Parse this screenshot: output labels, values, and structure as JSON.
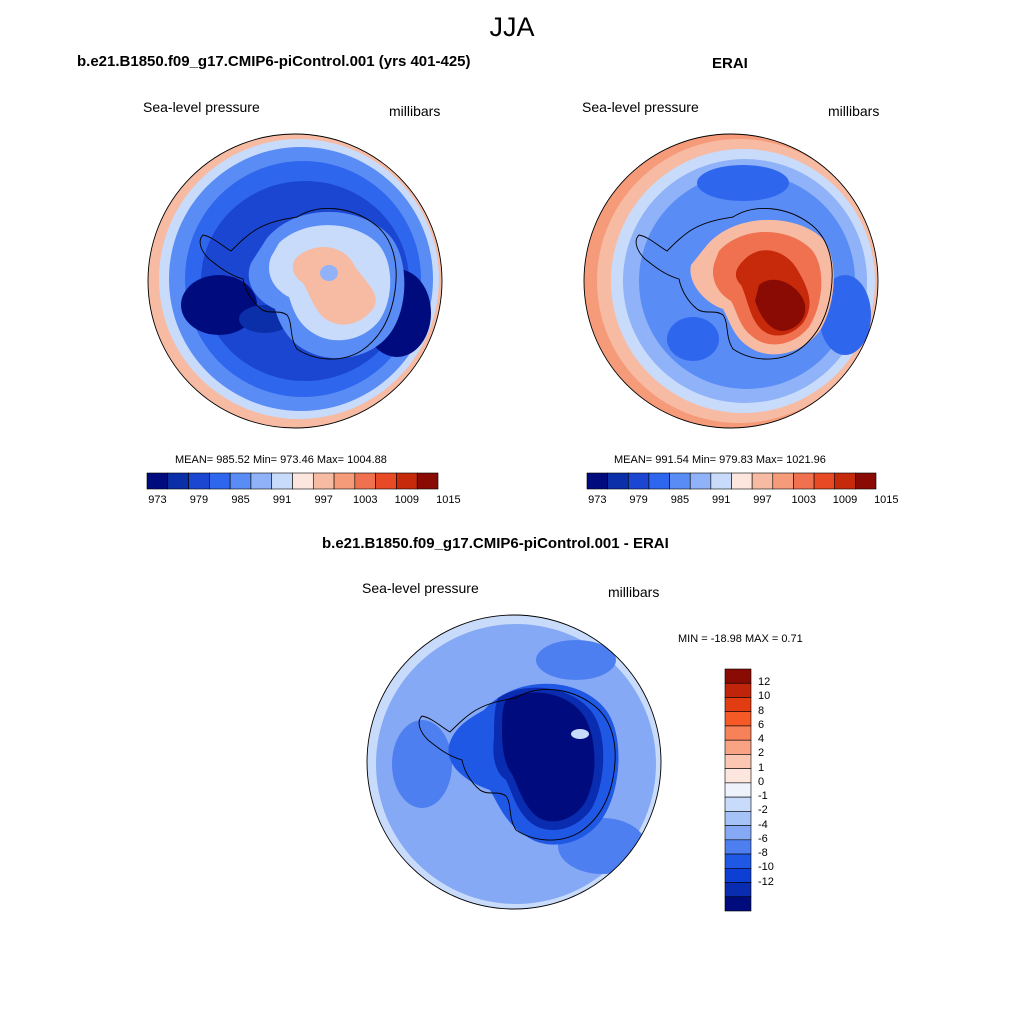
{
  "page": {
    "title": "JJA"
  },
  "panels": {
    "model": {
      "title": "b.e21.B1850.f09_g17.CMIP6-piControl.001 (yrs 401-425)",
      "left_label": "Sea-level pressure",
      "right_label": "millibars",
      "stats": "MEAN= 985.52  Min= 973.46  Max= 1004.88"
    },
    "obs": {
      "title": "ERAI",
      "left_label": "Sea-level pressure",
      "right_label": "millibars",
      "stats": "MEAN= 991.54  Min= 979.83  Max= 1021.96"
    },
    "diff": {
      "title": "b.e21.B1850.f09_g17.CMIP6-piControl.001 - ERAI",
      "left_label": "Sea-level pressure",
      "right_label": "millibars",
      "stats": "MIN = -18.98 MAX =   0.71"
    }
  },
  "colorbars": {
    "abs": {
      "colors": [
        "#000c7e",
        "#0b2fa8",
        "#1a46d2",
        "#2f66ee",
        "#5a8cf5",
        "#8fb2f8",
        "#c8dbfa",
        "#fde6dd",
        "#f7bba3",
        "#f69b7a",
        "#f07150",
        "#e84a25",
        "#c62a0b",
        "#8a0b03"
      ],
      "tick_labels": [
        "973",
        "979",
        "985",
        "991",
        "997",
        "1003",
        "1009",
        "1015"
      ]
    },
    "diff": {
      "colors": [
        "#8a0b03",
        "#c0240b",
        "#e23d12",
        "#f55a26",
        "#f7825a",
        "#f8a383",
        "#fbc7b2",
        "#fde6dd",
        "#eef2fb",
        "#c8dbfa",
        "#a6c3f8",
        "#86a9f5",
        "#4d7ff0",
        "#2058e6",
        "#0d3fd4",
        "#0a2cb0",
        "#000c7e"
      ],
      "tick_labels": [
        "12",
        "10",
        "8",
        "6",
        "4",
        "2",
        "1",
        "0",
        "-1",
        "-2",
        "-4",
        "-6",
        "-8",
        "-10",
        "-12"
      ]
    }
  },
  "map_colors": {
    "model": {
      "ocean": "#1a46d2",
      "ring1": "#2f66ee",
      "ring2": "#5a8cf5",
      "ring3": "#c8dbfa",
      "edge": "#f7bba3",
      "deep": "#000c7e",
      "land1": "#c8dbfa",
      "land2": "#f7bba3"
    },
    "obs": {
      "ocean": "#2f66ee",
      "ring1": "#5a8cf5",
      "ring2": "#8fb2f8",
      "ring3": "#c8dbfa",
      "edge": "#f69b7a",
      "deep": "#1a46d2",
      "land1": "#f07150",
      "land2": "#c62a0b",
      "land3": "#8a0b03"
    },
    "diff": {
      "ocean": "#86a9f5",
      "ring1": "#4d7ff0",
      "ring2": "#2058e6",
      "edge": "#c8dbfa",
      "land1": "#0d3fd4",
      "land2": "#0a2cb0",
      "land3": "#000c7e"
    }
  }
}
